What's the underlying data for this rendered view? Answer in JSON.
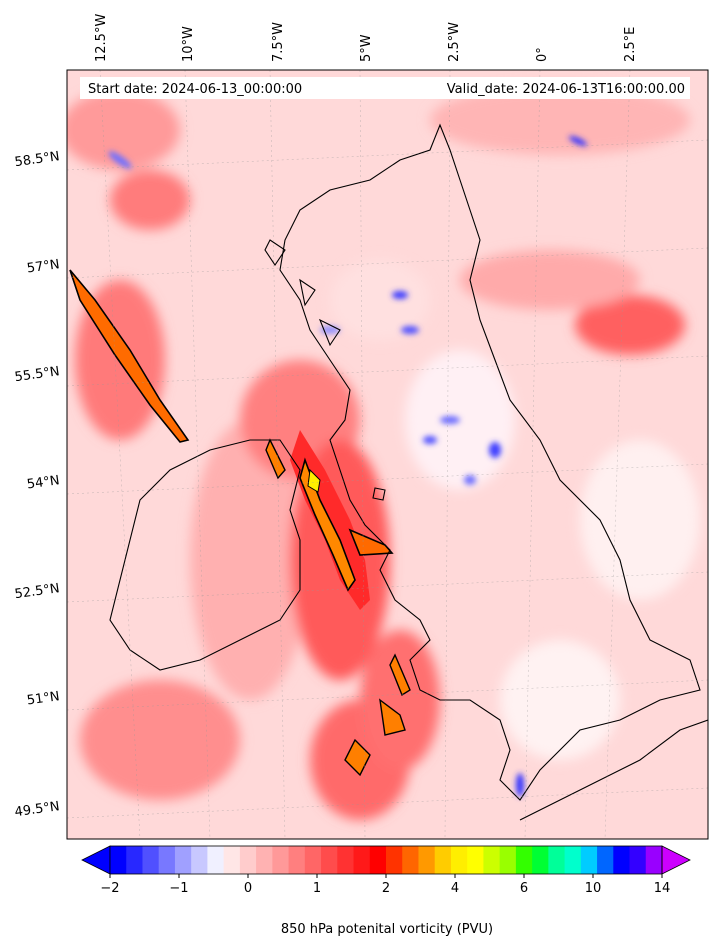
{
  "map": {
    "start_date_label": "Start date: 2024-06-13_00:00:00",
    "valid_date_label": "Valid_date: 2024-06-13T16:00:00.00",
    "lon_labels": [
      "12.5°W",
      "10°W",
      "7.5°W",
      "5°W",
      "2.5°W",
      "0°",
      "2.5°E"
    ],
    "lat_labels": [
      "58.5°N",
      "57°N",
      "55.5°N",
      "54°N",
      "52.5°N",
      "51°N",
      "49.5°N"
    ],
    "field": "850 hPa potenital vorticity (PVU)"
  },
  "colorbar": {
    "label": "850 hPa potenital vorticity (PVU)",
    "ticks": [
      "−2",
      "−1",
      "0",
      "1",
      "2",
      "4",
      "6",
      "10",
      "14"
    ],
    "extend": "both",
    "colors": [
      "#0000ff",
      "#2828ff",
      "#5050ff",
      "#7878ff",
      "#a0a0ff",
      "#c8c8ff",
      "#f0f0ff",
      "#ffe6e6",
      "#ffcccc",
      "#ffb2b2",
      "#ff9999",
      "#ff7f7f",
      "#ff6666",
      "#ff4c4c",
      "#ff3232",
      "#ff1919",
      "#ff0000",
      "#ff3300",
      "#ff6600",
      "#ff9900",
      "#ffcc00",
      "#ffee00",
      "#ffff00",
      "#ccff00",
      "#99ff00",
      "#33ff00",
      "#00ff33",
      "#00ff99",
      "#00ffcc",
      "#00ccff",
      "#0066ff",
      "#0000ff",
      "#3300ff",
      "#9900ff"
    ],
    "under_color": "#0000ff",
    "over_color": "#cc00ff"
  }
}
